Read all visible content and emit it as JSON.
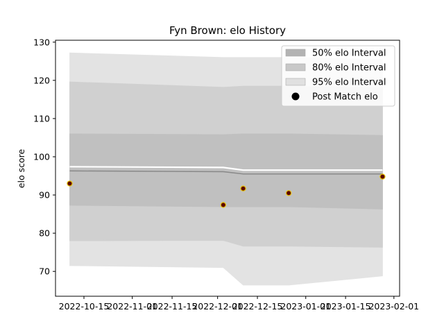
{
  "chart_data": {
    "type": "area",
    "title": "Fyn Brown: elo History",
    "xlabel": "",
    "ylabel": "elo score",
    "x_type": "date",
    "xlim": [
      "2022-10-05",
      "2023-02-03"
    ],
    "ylim": [
      63.5,
      130.5
    ],
    "x_ticks": [
      "2022-10-15",
      "2022-11-01",
      "2022-11-15",
      "2022-12-01",
      "2022-12-15",
      "2023-01-01",
      "2023-01-15",
      "2023-02-01"
    ],
    "y_ticks": [
      70,
      80,
      90,
      100,
      110,
      120,
      130
    ],
    "grid": false,
    "legend_position": "top-right",
    "dates": [
      "2022-10-10",
      "2022-12-03",
      "2022-12-10",
      "2022-12-26",
      "2023-01-28"
    ],
    "mean": [
      96.3,
      96.1,
      95.5,
      95.5,
      95.5
    ],
    "mean_upper": [
      97.4,
      97.2,
      96.5,
      96.5,
      96.5
    ],
    "series": [
      {
        "name": "95% elo Interval",
        "type": "band",
        "color": "#e3e3e3",
        "lower": [
          71.5,
          71.0,
          66.4,
          66.4,
          68.8
        ],
        "upper": [
          127.2,
          126.0,
          126.0,
          126.0,
          125.5
        ]
      },
      {
        "name": "80% elo Interval",
        "type": "band",
        "color": "#d0d0d0",
        "lower": [
          78.0,
          78.1,
          76.6,
          76.6,
          76.3
        ],
        "upper": [
          119.6,
          118.2,
          118.5,
          118.5,
          118.0
        ]
      },
      {
        "name": "50% elo Interval",
        "type": "band",
        "color": "#c0c0c0",
        "lower": [
          87.3,
          86.9,
          86.9,
          86.9,
          86.3
        ],
        "upper": [
          106.0,
          105.8,
          106.0,
          106.0,
          105.6
        ]
      },
      {
        "name": "Post Match elo",
        "type": "scatter",
        "color": "#5c0000",
        "edge_color": "#e6c200",
        "x": [
          "2022-10-10",
          "2022-12-03",
          "2022-12-10",
          "2022-12-26",
          "2023-01-28"
        ],
        "y": [
          93.0,
          87.4,
          91.7,
          90.5,
          94.8
        ]
      }
    ],
    "legend": [
      "50% elo Interval",
      "80% elo Interval",
      "95% elo Interval",
      "Post Match elo"
    ]
  }
}
